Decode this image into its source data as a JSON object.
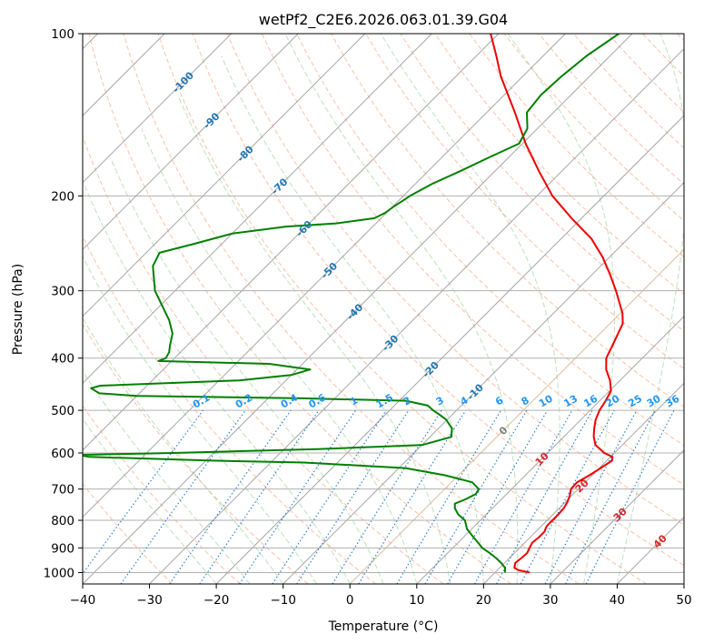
{
  "chart_data": {
    "type": "line",
    "subtype": "skew-T log-P diagram",
    "title": "wetPf2_C2E6.2026.063.01.39.G04",
    "xlabel": "Temperature (°C)",
    "ylabel": "Pressure (hPa)",
    "xlim": [
      -40,
      50
    ],
    "ylim": [
      1050,
      100
    ],
    "y_scale": "log",
    "x_ticks": [
      -40,
      -30,
      -20,
      -10,
      0,
      10,
      20,
      30,
      40,
      50
    ],
    "y_ticks": [
      100,
      200,
      300,
      400,
      500,
      600,
      700,
      800,
      900,
      1000
    ],
    "grid": true,
    "series": [
      {
        "role": "temperature",
        "color": "#ee0000",
        "points": [
          [
            1000,
            25.2
          ],
          [
            990,
            23.2
          ],
          [
            980,
            22.2
          ],
          [
            960,
            21.6
          ],
          [
            940,
            21.8
          ],
          [
            920,
            21.9
          ],
          [
            900,
            21.5
          ],
          [
            880,
            21.1
          ],
          [
            860,
            21.3
          ],
          [
            840,
            21.3
          ],
          [
            820,
            20.8
          ],
          [
            800,
            20.8
          ],
          [
            780,
            20.8
          ],
          [
            760,
            20.7
          ],
          [
            740,
            20.3
          ],
          [
            720,
            19.7
          ],
          [
            700,
            18.9
          ],
          [
            680,
            18.8
          ],
          [
            660,
            19.6
          ],
          [
            640,
            20.2
          ],
          [
            620,
            20.8
          ],
          [
            610,
            20.3
          ],
          [
            600,
            18.5
          ],
          [
            580,
            16.0
          ],
          [
            560,
            14.5
          ],
          [
            540,
            13.3
          ],
          [
            520,
            12.2
          ],
          [
            500,
            11.4
          ],
          [
            480,
            10.9
          ],
          [
            460,
            10.2
          ],
          [
            440,
            8.5
          ],
          [
            420,
            6.3
          ],
          [
            400,
            4.6
          ],
          [
            380,
            3.7
          ],
          [
            360,
            2.7
          ],
          [
            345,
            1.9
          ],
          [
            330,
            0.3
          ],
          [
            300,
            -4.0
          ],
          [
            280,
            -7.3
          ],
          [
            260,
            -11.0
          ],
          [
            240,
            -15.5
          ],
          [
            220,
            -21.5
          ],
          [
            200,
            -27.7
          ],
          [
            180,
            -33.4
          ],
          [
            160,
            -39.5
          ],
          [
            140,
            -45.8
          ],
          [
            120,
            -53.3
          ],
          [
            110,
            -57.0
          ],
          [
            100,
            -61.2
          ]
        ]
      },
      {
        "role": "dewpoint",
        "color": "#008000",
        "points": [
          [
            1000,
            21.5
          ],
          [
            980,
            20.8
          ],
          [
            960,
            19.5
          ],
          [
            940,
            18.0
          ],
          [
            920,
            16.3
          ],
          [
            900,
            14.4
          ],
          [
            880,
            13.0
          ],
          [
            860,
            11.5
          ],
          [
            830,
            9.3
          ],
          [
            800,
            7.7
          ],
          [
            780,
            5.8
          ],
          [
            760,
            4.4
          ],
          [
            745,
            3.7
          ],
          [
            730,
            4.7
          ],
          [
            715,
            5.4
          ],
          [
            700,
            5.1
          ],
          [
            680,
            3.1
          ],
          [
            660,
            -2.0
          ],
          [
            640,
            -9.0
          ],
          [
            625,
            -25.0
          ],
          [
            620,
            -39.0
          ],
          [
            610,
            -58.0
          ],
          [
            605,
            -60.0
          ],
          [
            600,
            -46.0
          ],
          [
            590,
            -25.0
          ],
          [
            580,
            -10.0
          ],
          [
            560,
            -6.8
          ],
          [
            540,
            -8.0
          ],
          [
            520,
            -10.2
          ],
          [
            510,
            -11.8
          ],
          [
            500,
            -13.5
          ],
          [
            490,
            -15.0
          ],
          [
            480,
            -19.0
          ],
          [
            475,
            -35.0
          ],
          [
            470,
            -60.0
          ],
          [
            465,
            -66.0
          ],
          [
            455,
            -68.0
          ],
          [
            450,
            -67.0
          ],
          [
            440,
            -47.0
          ],
          [
            430,
            -40.0
          ],
          [
            420,
            -38.0
          ],
          [
            410,
            -45.0
          ],
          [
            405,
            -62.0
          ],
          [
            400,
            -61.3
          ],
          [
            390,
            -61.7
          ],
          [
            380,
            -62.5
          ],
          [
            360,
            -64.0
          ],
          [
            340,
            -66.5
          ],
          [
            300,
            -73.0
          ],
          [
            270,
            -77.0
          ],
          [
            255,
            -78.0
          ],
          [
            245,
            -74.0
          ],
          [
            235,
            -70.0
          ],
          [
            228,
            -63.0
          ],
          [
            225,
            -56.0
          ],
          [
            220,
            -51.0
          ],
          [
            215,
            -50.2
          ],
          [
            210,
            -49.9
          ],
          [
            200,
            -49.0
          ],
          [
            190,
            -47.5
          ],
          [
            180,
            -45.2
          ],
          [
            170,
            -43.0
          ],
          [
            160,
            -40.5
          ],
          [
            150,
            -41.5
          ],
          [
            140,
            -44.0
          ],
          [
            130,
            -44.5
          ],
          [
            120,
            -44.2
          ],
          [
            110,
            -43.5
          ],
          [
            100,
            -42.0
          ]
        ]
      }
    ],
    "isotherm_labels": [
      -100,
      -90,
      -80,
      -70,
      -60,
      -50,
      -40,
      -30,
      -20,
      -10,
      0,
      10,
      20,
      30,
      40
    ],
    "isotherm_label_colors": {
      "negative": "#1f77b4",
      "zero": "#7f7f7f",
      "positive": "#d62728"
    },
    "mixing_ratio_labels": [
      "0.1",
      "0.2",
      "0.4",
      "0.6",
      "1",
      "1.5",
      "2",
      "3",
      "4",
      "6",
      "8",
      "10",
      "13",
      "16",
      "20",
      "25",
      "30",
      "36"
    ],
    "mixing_ratio_values": [
      0.1,
      0.2,
      0.4,
      0.6,
      1,
      1.5,
      2,
      3,
      4,
      6,
      8,
      10,
      13,
      16,
      20,
      25,
      30,
      36
    ],
    "mixing_ratio_label_pressure": 500,
    "colors": {
      "isotherm_lines": "#888888",
      "dry_adiabats": "#fc8d62",
      "moist_adiabats": "#8fce8f",
      "mixing_ratio_lines": "#1f78d1",
      "mixing_ratio_labels": "#2196f3",
      "isotherm_family_0": "#c8a878"
    }
  }
}
